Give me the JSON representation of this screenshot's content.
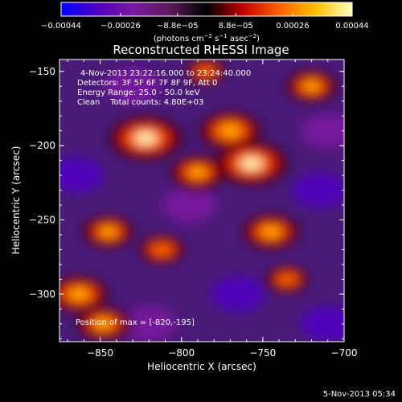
{
  "colorbar": {
    "tick_labels": [
      "−0.00044",
      "−0.00026",
      "−8.8e−05",
      "8.8e−05",
      "0.00026",
      "0.00044"
    ],
    "tick_values": [
      -0.00044,
      -0.00026,
      -8.8e-05,
      8.8e-05,
      0.00026,
      0.00044
    ],
    "range": [
      -0.00044,
      0.00044
    ],
    "unit_main": "(photons cm",
    "unit_sup1": "−2",
    "unit_mid": " s",
    "unit_sup2": "−1",
    "unit_end": " asec",
    "unit_sup3": "−2",
    "unit_close": ")",
    "colors": [
      "#0000ff",
      "#5000c0",
      "#7a1aa0",
      "#5a1a5a",
      "#000000",
      "#c00000",
      "#ff6000",
      "#ffc000",
      "#ffffc0"
    ]
  },
  "chart_data": {
    "type": "heatmap",
    "title": "Reconstructed RHESSI Image",
    "xlabel": "Heliocentric X (arcsec)",
    "ylabel": "Heliocentric Y (arcsec)",
    "xlim": [
      -875,
      -700
    ],
    "ylim": [
      -332,
      -142
    ],
    "x_ticks": [
      -850,
      -800,
      -750,
      -700
    ],
    "x_tick_labels": [
      "−850",
      "−800",
      "−750",
      "−700"
    ],
    "y_ticks": [
      -150,
      -200,
      -250,
      -300
    ],
    "y_tick_labels": [
      "−150",
      "−200",
      "−250",
      "−300"
    ],
    "grid": false,
    "annotations": [
      "4-Nov-2013 23:22:16.000 to 23:24:40.000",
      "Detectors: 3F 5F 6F 7F 8F 9F, Att 0",
      "Energy Range: 25.0 - 50.0 keV",
      "Clean",
      "Total counts: 4.80E+03",
      "Position of max = [-820,-195]"
    ],
    "max_position": [
      -820,
      -195
    ],
    "bright_regions": [
      {
        "x": -822,
        "y": -195,
        "level": 0.00044
      },
      {
        "x": -770,
        "y": -190,
        "level": 0.00036
      },
      {
        "x": -757,
        "y": -212,
        "level": 0.00044
      },
      {
        "x": -790,
        "y": -218,
        "level": 0.0003
      },
      {
        "x": -745,
        "y": -258,
        "level": 0.00032
      },
      {
        "x": -845,
        "y": -258,
        "level": 0.00028
      },
      {
        "x": -863,
        "y": -300,
        "level": 0.00034
      },
      {
        "x": -812,
        "y": -270,
        "level": 0.00024
      },
      {
        "x": -720,
        "y": -160,
        "level": 0.00028
      },
      {
        "x": -735,
        "y": -290,
        "level": 0.00022
      },
      {
        "x": -848,
        "y": -320,
        "level": 0.0003
      },
      {
        "x": -785,
        "y": -150,
        "level": 0.0002
      }
    ],
    "dark_regions": [
      {
        "x": -865,
        "y": -220,
        "level": -0.0003
      },
      {
        "x": -795,
        "y": -240,
        "level": -0.00026
      },
      {
        "x": -715,
        "y": -230,
        "level": -0.00032
      },
      {
        "x": -765,
        "y": -300,
        "level": -0.00028
      },
      {
        "x": -820,
        "y": -320,
        "level": -0.00024
      },
      {
        "x": -710,
        "y": -320,
        "level": -0.0003
      },
      {
        "x": -830,
        "y": -160,
        "level": -0.00022
      },
      {
        "x": -710,
        "y": -190,
        "level": -0.00026
      }
    ]
  },
  "footer": {
    "timestamp": "5-Nov-2013 05:34"
  }
}
